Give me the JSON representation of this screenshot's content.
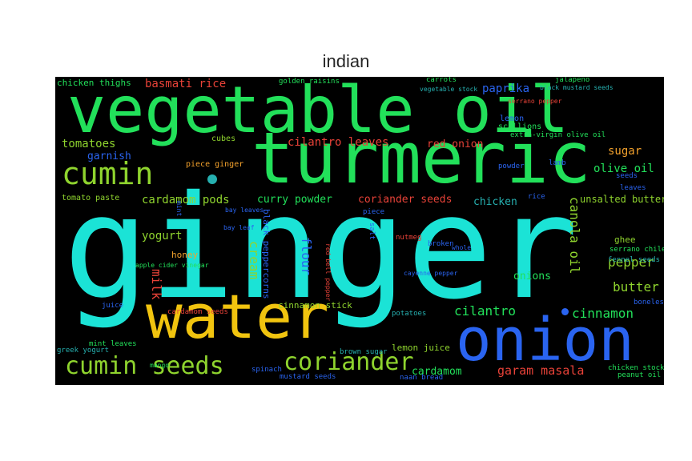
{
  "title": "indian",
  "colors": {
    "background": "#000000",
    "cyan": "#1be3d6",
    "green": "#22e05a",
    "lime": "#8fd42e",
    "yellow": "#f1c40f",
    "blue": "#2a64f0",
    "red": "#e84238",
    "orange": "#f2a12c",
    "teal": "#26b0b0"
  },
  "words": [
    {
      "id": "ginger",
      "text": "ginger"
    },
    {
      "id": "vegetable-oil",
      "text": "vegetable oil"
    },
    {
      "id": "turmeric",
      "text": "turmeric"
    },
    {
      "id": "water",
      "text": "water"
    },
    {
      "id": "onion",
      "text": "onion"
    },
    {
      "id": "cumin",
      "text": "cumin"
    },
    {
      "id": "cumin-seeds",
      "text": "cumin seeds"
    },
    {
      "id": "coriander",
      "text": "coriander"
    },
    {
      "id": "garam-masala",
      "text": "garam masala"
    },
    {
      "id": "cardamom",
      "text": "cardamom"
    },
    {
      "id": "cilantro",
      "text": "cilantro"
    },
    {
      "id": "cinnamon",
      "text": "cinnamon"
    },
    {
      "id": "butter",
      "text": "butter"
    },
    {
      "id": "pepper",
      "text": "pepper"
    },
    {
      "id": "canola-oil",
      "text": "canola oil"
    },
    {
      "id": "flour",
      "text": "flour"
    },
    {
      "id": "cream",
      "text": "cream"
    },
    {
      "id": "milk",
      "text": "milk"
    },
    {
      "id": "yogurt",
      "text": "yogurt"
    },
    {
      "id": "tomatoes",
      "text": "tomatoes"
    },
    {
      "id": "garnish",
      "text": "garnish"
    },
    {
      "id": "basmati-rice",
      "text": "basmati rice"
    },
    {
      "id": "cilantro-leaves",
      "text": "cilantro leaves"
    },
    {
      "id": "red-onion",
      "text": "red onion"
    },
    {
      "id": "paprika",
      "text": "paprika"
    },
    {
      "id": "sugar",
      "text": "sugar"
    },
    {
      "id": "olive-oil",
      "text": "olive oil"
    },
    {
      "id": "cardamom-pods",
      "text": "cardamom pods"
    },
    {
      "id": "curry-powder",
      "text": "curry powder"
    },
    {
      "id": "coriander-seeds",
      "text": "coriander seeds"
    },
    {
      "id": "chicken",
      "text": "chicken"
    },
    {
      "id": "unsalted-butter",
      "text": "unsalted butter"
    },
    {
      "id": "onions",
      "text": "onions"
    },
    {
      "id": "ghee",
      "text": "ghee"
    },
    {
      "id": "honey",
      "text": "honey"
    },
    {
      "id": "lemon-juice",
      "text": "lemon juice"
    },
    {
      "id": "cinnamon-stick",
      "text": "cinnamon stick"
    },
    {
      "id": "black-peppercorns",
      "text": "black peppercorns"
    },
    {
      "id": "tomato-paste",
      "text": "tomato paste"
    },
    {
      "id": "chicken-thighs",
      "text": "chicken thighs"
    },
    {
      "id": "cubes",
      "text": "cubes"
    },
    {
      "id": "piece-ginger",
      "text": "piece ginger"
    },
    {
      "id": "golden-raisins",
      "text": "golden raisins"
    },
    {
      "id": "carrots",
      "text": "carrots"
    },
    {
      "id": "jalapeno",
      "text": "jalapeno"
    },
    {
      "id": "lemon",
      "text": "lemon"
    },
    {
      "id": "scallions",
      "text": "scallions"
    },
    {
      "id": "extra-virgin-olive-oil",
      "text": "extra-virgin olive oil"
    },
    {
      "id": "serrano-chile",
      "text": "serrano chile"
    },
    {
      "id": "fennel-seeds",
      "text": "fennel seeds"
    },
    {
      "id": "chicken-stock",
      "text": "chicken stock"
    },
    {
      "id": "peanut-oil",
      "text": "peanut oil"
    },
    {
      "id": "cardamom-seeds",
      "text": "cardamom seeds"
    },
    {
      "id": "mint-leaves",
      "text": "mint leaves"
    },
    {
      "id": "greek-yogurt",
      "text": "greek yogurt"
    },
    {
      "id": "juice",
      "text": "juice"
    },
    {
      "id": "potatoes",
      "text": "potatoes"
    },
    {
      "id": "nutmeg",
      "text": "nutmeg"
    },
    {
      "id": "boneless",
      "text": "boneless"
    },
    {
      "id": "mustard-seeds",
      "text": "mustard seeds"
    },
    {
      "id": "naan-bread",
      "text": "naan bread"
    },
    {
      "id": "spinach",
      "text": "spinach"
    },
    {
      "id": "brown-sugar",
      "text": "brown sugar"
    },
    {
      "id": "rice",
      "text": "rice"
    },
    {
      "id": "piece",
      "text": "piece"
    },
    {
      "id": "seeds",
      "text": "seeds"
    },
    {
      "id": "leaves",
      "text": "leaves"
    },
    {
      "id": "salt",
      "text": "salt"
    },
    {
      "id": "lamb",
      "text": "lamb"
    },
    {
      "id": "powder",
      "text": "powder"
    },
    {
      "id": "bay-leaf",
      "text": "bay leaf"
    },
    {
      "id": "bay-leaves",
      "text": "bay leaves"
    },
    {
      "id": "mint",
      "text": "mint"
    },
    {
      "id": "broken",
      "text": "broken"
    },
    {
      "id": "whole",
      "text": "whole"
    },
    {
      "id": "serrano-pepper",
      "text": "serrano pepper"
    },
    {
      "id": "vegetable-stock",
      "text": "vegetable stock"
    },
    {
      "id": "black-mustard-seeds",
      "text": "black mustard seeds"
    },
    {
      "id": "cayenne-pepper",
      "text": "cayenne pepper"
    },
    {
      "id": "apple-cider-vinegar",
      "text": "apple cider vinegar"
    },
    {
      "id": "red-bell-pepper",
      "text": "red bell pepper"
    },
    {
      "id": "mango",
      "text": "mango"
    }
  ]
}
